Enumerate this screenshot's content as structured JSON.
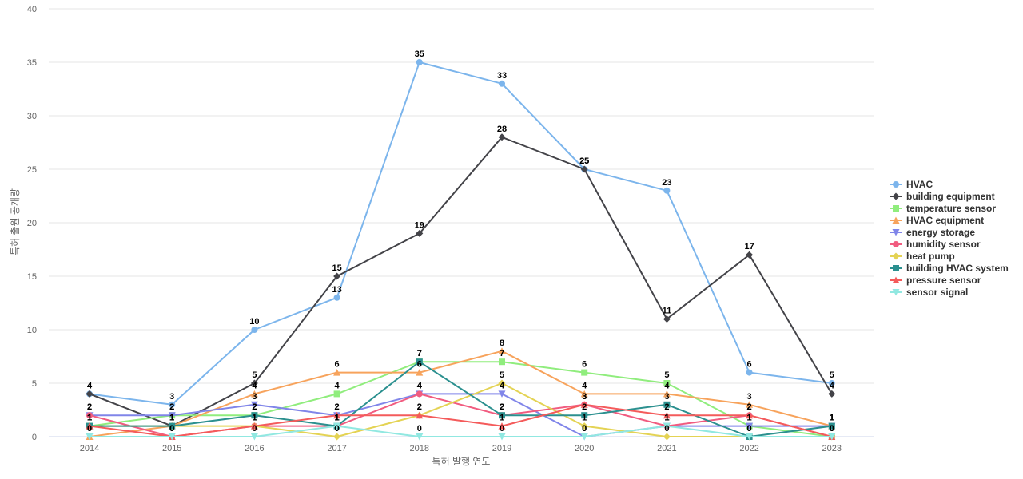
{
  "chart_data": {
    "type": "line",
    "title": "",
    "xlabel": "특허 발행 연도",
    "ylabel": "특허 출원 공개량",
    "ylim": [
      0,
      40
    ],
    "yticks": [
      0,
      5,
      10,
      15,
      20,
      25,
      30,
      35,
      40
    ],
    "grid": true,
    "legend_position": "right",
    "x": [
      "2014",
      "2015",
      "2016",
      "2017",
      "2018",
      "2019",
      "2020",
      "2021",
      "2022",
      "2023"
    ],
    "series": [
      {
        "name": "HVAC",
        "color": "#7cb5ec",
        "marker": "circle",
        "values": [
          4,
          3,
          10,
          13,
          35,
          33,
          25,
          23,
          6,
          5
        ]
      },
      {
        "name": "building equipment",
        "color": "#434348",
        "marker": "diamond",
        "values": [
          4,
          1,
          5,
          15,
          19,
          28,
          25,
          11,
          17,
          4
        ]
      },
      {
        "name": "temperature sensor",
        "color": "#90ed7d",
        "marker": "square",
        "values": [
          1,
          2,
          2,
          4,
          7,
          7,
          6,
          5,
          1,
          0
        ]
      },
      {
        "name": "HVAC equipment",
        "color": "#f7a35c",
        "marker": "triangle",
        "values": [
          0,
          1,
          4,
          6,
          6,
          8,
          4,
          4,
          3,
          1
        ]
      },
      {
        "name": "energy storage",
        "color": "#8085e9",
        "marker": "triangle-down",
        "values": [
          2,
          2,
          3,
          2,
          4,
          4,
          0,
          1,
          1,
          1
        ]
      },
      {
        "name": "humidity sensor",
        "color": "#f15c80",
        "marker": "circle",
        "values": [
          2,
          0,
          1,
          1,
          4,
          2,
          3,
          1,
          2,
          0
        ]
      },
      {
        "name": "heat pump",
        "color": "#e4d354",
        "marker": "diamond",
        "values": [
          1,
          1,
          1,
          0,
          2,
          5,
          1,
          0,
          0,
          0
        ]
      },
      {
        "name": "building HVAC system",
        "color": "#2b908f",
        "marker": "square",
        "values": [
          1,
          1,
          2,
          1,
          7,
          2,
          2,
          3,
          0,
          1
        ]
      },
      {
        "name": "pressure sensor",
        "color": "#f45b5b",
        "marker": "triangle",
        "values": [
          1,
          0,
          1,
          2,
          2,
          1,
          3,
          2,
          2,
          0
        ]
      },
      {
        "name": "sensor signal",
        "color": "#91e8e1",
        "marker": "triangle-down",
        "values": [
          0,
          0,
          0,
          1,
          0,
          0,
          0,
          1,
          0,
          0
        ]
      }
    ]
  }
}
